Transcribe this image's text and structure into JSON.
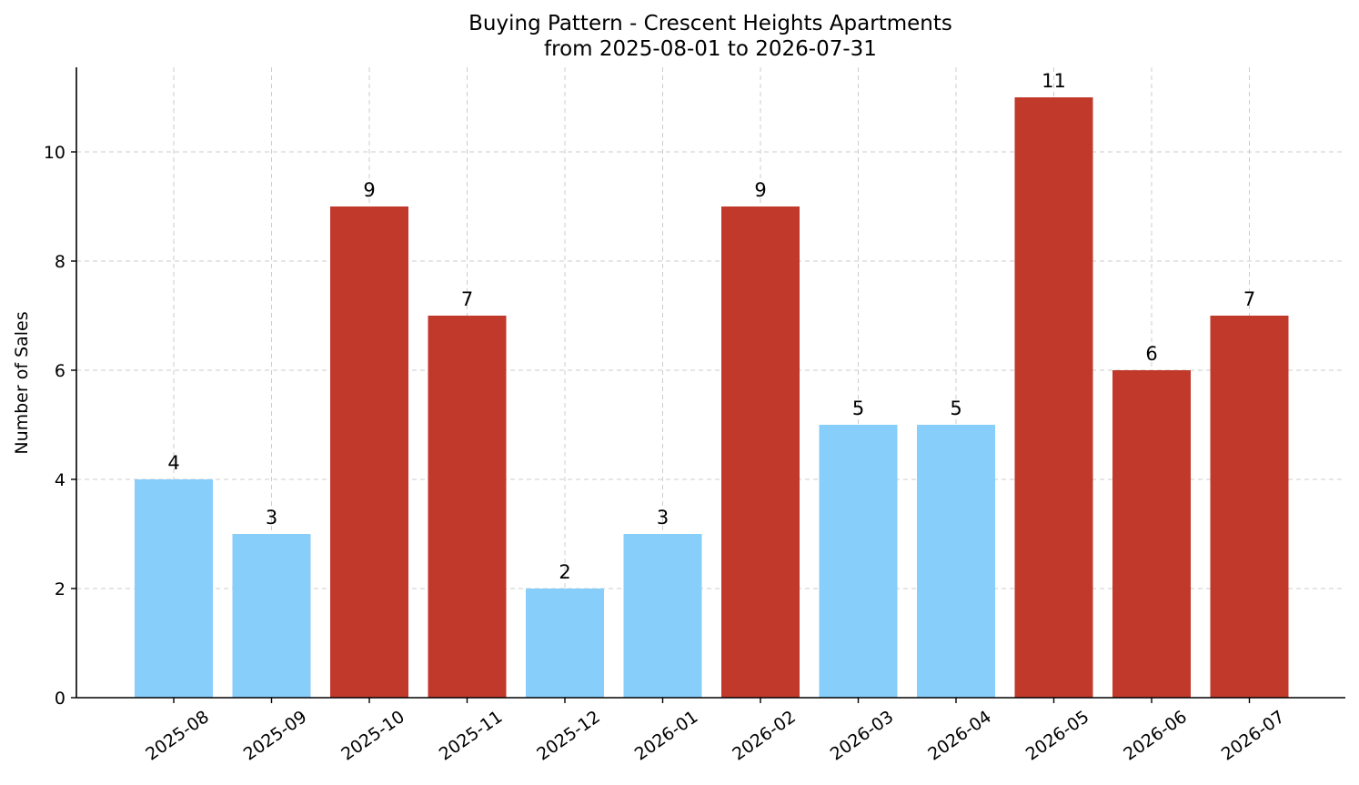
{
  "chart_data": {
    "type": "bar",
    "title": "Buying Pattern - Crescent Heights Apartments",
    "subtitle": "from 2025-08-01 to 2026-07-31",
    "xlabel": "",
    "ylabel": "Number of Sales",
    "categories": [
      "2025-08",
      "2025-09",
      "2025-10",
      "2025-11",
      "2025-12",
      "2026-01",
      "2026-02",
      "2026-03",
      "2026-04",
      "2026-05",
      "2026-06",
      "2026-07"
    ],
    "values": [
      4,
      3,
      9,
      7,
      2,
      3,
      9,
      5,
      5,
      11,
      6,
      7
    ],
    "bar_colors": [
      "#87CEFA",
      "#87CEFA",
      "#C0392B",
      "#C0392B",
      "#87CEFA",
      "#87CEFA",
      "#C0392B",
      "#87CEFA",
      "#87CEFA",
      "#C0392B",
      "#C0392B",
      "#C0392B"
    ],
    "ylim": [
      0,
      11.55
    ],
    "yticks": [
      0,
      2,
      4,
      6,
      8,
      10
    ],
    "grid": true,
    "legend": "none"
  }
}
